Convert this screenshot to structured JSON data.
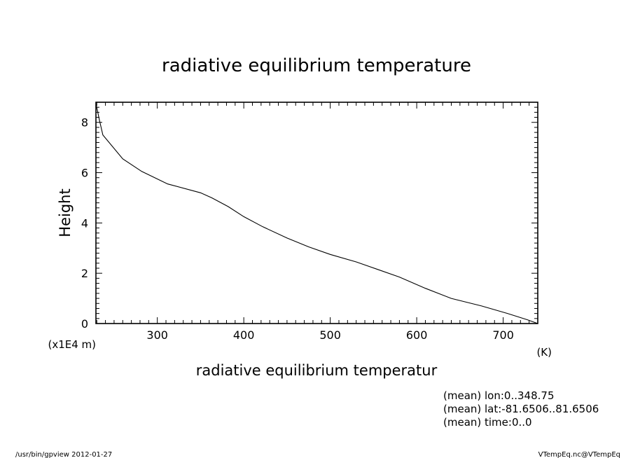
{
  "chart_data": {
    "type": "line",
    "title": "radiative equilibrium temperature",
    "xlabel": "radiative equilibrium temperatur",
    "xunit": "(K)",
    "ylabel": "Height",
    "yunit": "(x1E4 m)",
    "xlim": [
      229,
      740
    ],
    "ylim": [
      0,
      8.8
    ],
    "xticks": [
      300,
      400,
      500,
      600,
      700
    ],
    "yticks": [
      0,
      2,
      4,
      6,
      8
    ],
    "xtick_labels": [
      "300",
      "400",
      "500",
      "600",
      "700"
    ],
    "ytick_labels": [
      "0",
      "2",
      "4",
      "6",
      "8"
    ],
    "grid": false,
    "legend": "none",
    "series": [
      {
        "x": [
          229,
          233,
          237,
          260,
          282,
          312,
          350,
          363,
          382,
          400,
          422,
          450,
          475,
          500,
          530,
          555,
          580,
          610,
          640,
          675,
          705,
          728,
          740
        ],
        "y": [
          8.75,
          8.1,
          7.5,
          6.55,
          6.05,
          5.55,
          5.2,
          5.0,
          4.65,
          4.25,
          3.85,
          3.4,
          3.05,
          2.75,
          2.45,
          2.15,
          1.85,
          1.4,
          1.0,
          0.7,
          0.4,
          0.15,
          0.0
        ]
      }
    ],
    "annotations": [
      "(mean) lon:0..348.75",
      "(mean) lat:-81.6506..81.6506",
      "(mean) time:0..0"
    ]
  },
  "footer": {
    "left": "/usr/bin/gpview   2012-01-27",
    "right": "VTempEq.nc@VTempEq"
  }
}
